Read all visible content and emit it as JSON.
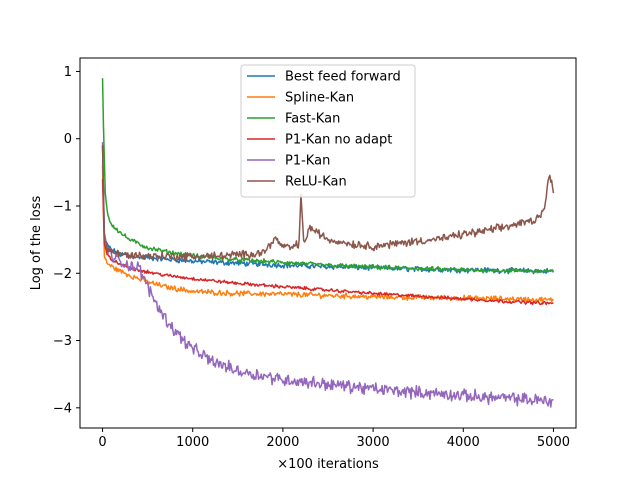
{
  "chart_data": {
    "type": "line",
    "title": "",
    "xlabel": "×100 iterations",
    "ylabel": "Log of the loss",
    "xlim": [
      -250,
      5250
    ],
    "ylim": [
      -4.3,
      1.2
    ],
    "xticks": [
      0,
      1000,
      2000,
      3000,
      4000,
      5000
    ],
    "xtick_labels": [
      "0",
      "1000",
      "2000",
      "3000",
      "4000",
      "5000"
    ],
    "yticks": [
      1,
      0,
      -1,
      -2,
      -3,
      -4
    ],
    "ytick_labels": [
      "1",
      "0",
      "−1",
      "−2",
      "−3",
      "−4"
    ],
    "grid": false,
    "legend_position": "top-center",
    "series": [
      {
        "name": "Best feed forward",
        "color": "#1f77b4",
        "x": [
          0,
          20,
          50,
          100,
          200,
          300,
          500,
          700,
          1000,
          1500,
          2000,
          2500,
          3000,
          3500,
          4000,
          4500,
          5000
        ],
        "values": [
          -0.1,
          -1.45,
          -1.58,
          -1.65,
          -1.72,
          -1.74,
          -1.77,
          -1.79,
          -1.82,
          -1.85,
          -1.88,
          -1.9,
          -1.92,
          -1.94,
          -1.95,
          -1.96,
          -1.97
        ],
        "noise": 0.03
      },
      {
        "name": "Spline-Kan",
        "color": "#ff7f0e",
        "x": [
          0,
          20,
          50,
          100,
          200,
          300,
          500,
          700,
          1000,
          1500,
          2000,
          2500,
          3000,
          3500,
          4000,
          4500,
          5000
        ],
        "values": [
          -0.4,
          -1.75,
          -1.85,
          -1.9,
          -1.97,
          -2.03,
          -2.13,
          -2.2,
          -2.27,
          -2.3,
          -2.31,
          -2.33,
          -2.35,
          -2.36,
          -2.37,
          -2.38,
          -2.4
        ],
        "noise": 0.03
      },
      {
        "name": "Fast-Kan",
        "color": "#2ca02c",
        "x": [
          0,
          10,
          30,
          60,
          100,
          200,
          300,
          500,
          700,
          1000,
          1500,
          2000,
          2500,
          3000,
          3500,
          4000,
          4500,
          5000
        ],
        "values": [
          0.9,
          0.2,
          -0.8,
          -1.15,
          -1.27,
          -1.4,
          -1.5,
          -1.62,
          -1.68,
          -1.74,
          -1.8,
          -1.84,
          -1.88,
          -1.91,
          -1.93,
          -1.95,
          -1.96,
          -1.97
        ],
        "noise": 0.025
      },
      {
        "name": "P1-Kan no adapt",
        "color": "#d62728",
        "x": [
          0,
          20,
          50,
          100,
          200,
          300,
          500,
          700,
          1000,
          1500,
          2000,
          2500,
          3000,
          3500,
          4000,
          4500,
          5000
        ],
        "values": [
          -0.6,
          -1.55,
          -1.72,
          -1.8,
          -1.87,
          -1.92,
          -1.98,
          -2.03,
          -2.08,
          -2.15,
          -2.2,
          -2.25,
          -2.3,
          -2.34,
          -2.38,
          -2.42,
          -2.45
        ],
        "noise": 0.018
      },
      {
        "name": "P1-Kan",
        "color": "#9467bd",
        "x": [
          0,
          20,
          50,
          100,
          200,
          300,
          400,
          450,
          500,
          600,
          700,
          800,
          900,
          1000,
          1200,
          1500,
          2000,
          2500,
          3000,
          3500,
          4000,
          4500,
          5000
        ],
        "values": [
          -0.05,
          -1.4,
          -1.6,
          -1.75,
          -1.83,
          -1.88,
          -1.92,
          -2.05,
          -2.2,
          -2.45,
          -2.68,
          -2.85,
          -3.0,
          -3.12,
          -3.3,
          -3.45,
          -3.58,
          -3.65,
          -3.72,
          -3.77,
          -3.82,
          -3.86,
          -3.9
        ],
        "noise": 0.07
      },
      {
        "name": "ReLU-Kan",
        "color": "#8c564b",
        "x": [
          0,
          20,
          50,
          100,
          200,
          300,
          500,
          800,
          1000,
          1300,
          1600,
          1800,
          1900,
          2000,
          2100,
          2180,
          2200,
          2230,
          2300,
          2500,
          2800,
          3000,
          3200,
          3500,
          3800,
          4000,
          4200,
          4400,
          4600,
          4800,
          4900,
          4950,
          5000
        ],
        "values": [
          -0.1,
          -1.5,
          -1.62,
          -1.68,
          -1.72,
          -1.73,
          -1.74,
          -1.75,
          -1.75,
          -1.74,
          -1.72,
          -1.68,
          -1.48,
          -1.6,
          -1.62,
          -1.55,
          -0.82,
          -1.55,
          -1.32,
          -1.5,
          -1.57,
          -1.6,
          -1.57,
          -1.52,
          -1.48,
          -1.42,
          -1.38,
          -1.33,
          -1.27,
          -1.2,
          -1.05,
          -0.55,
          -0.75
        ],
        "noise": 0.045
      }
    ]
  }
}
